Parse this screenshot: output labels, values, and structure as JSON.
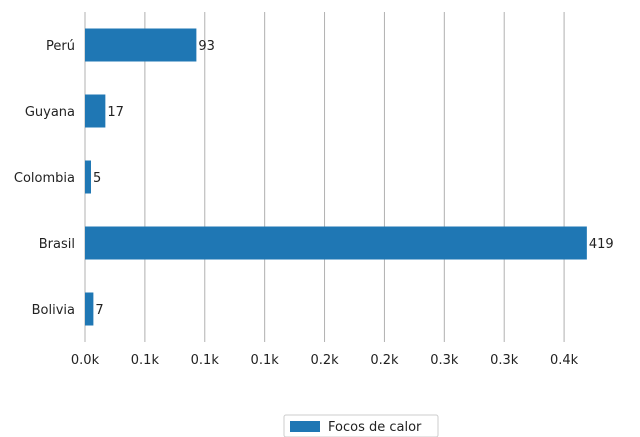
{
  "chart_data": {
    "type": "bar",
    "orientation": "horizontal",
    "categories": [
      "Perú",
      "Guyana",
      "Colombia",
      "Brasil",
      "Bolivia"
    ],
    "values": [
      93,
      17,
      5,
      419,
      7
    ],
    "data_labels": [
      "93",
      "17",
      "5",
      "419",
      "7"
    ],
    "series": [
      {
        "name": "Focos de calor",
        "values": [
          93,
          17,
          5,
          419,
          7
        ]
      }
    ],
    "xlim": [
      0,
      440
    ],
    "x_ticks": [
      0,
      50,
      100,
      150,
      200,
      250,
      300,
      350,
      400
    ],
    "x_tick_labels": [
      "0.0k",
      "0.1k",
      "0.1k",
      "0.1k",
      "0.2k",
      "0.2k",
      "0.3k",
      "0.3k",
      "0.4k"
    ],
    "grid": "vertical",
    "legend_position": "bottom-center",
    "bar_color": "#1f77b4",
    "grid_color": "#b0b0b0",
    "title": "",
    "xlabel": "",
    "ylabel": ""
  }
}
